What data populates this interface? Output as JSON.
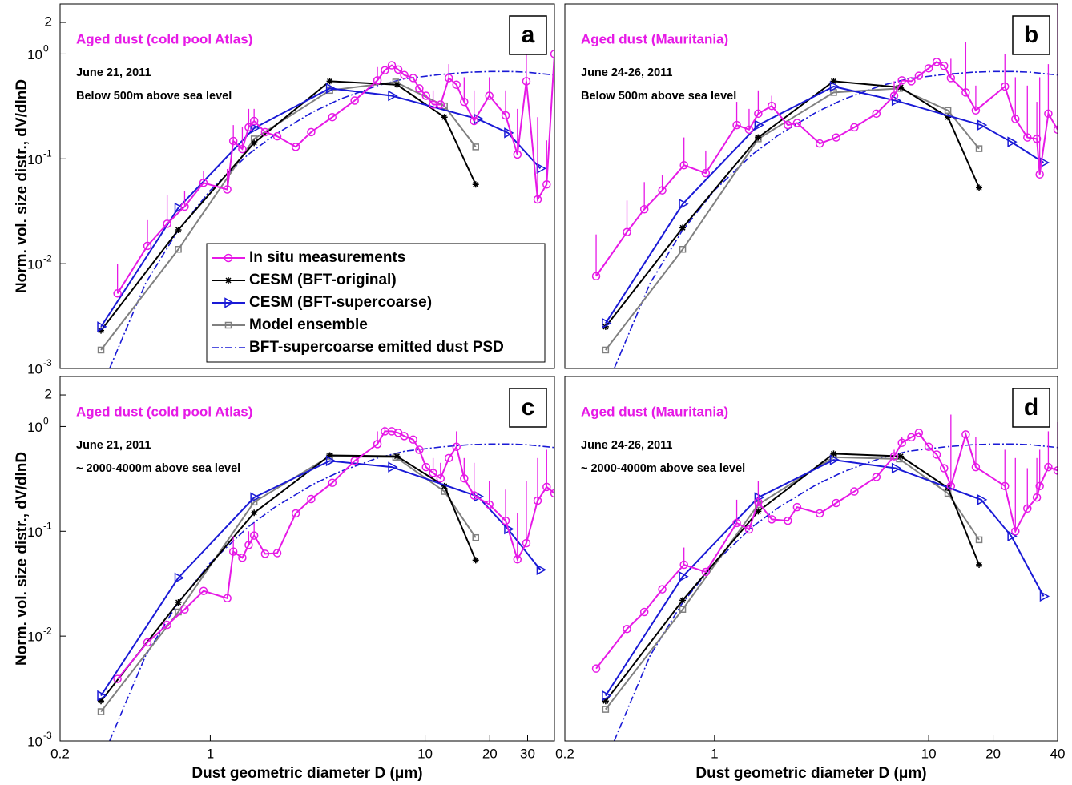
{
  "chart_data": [
    {
      "type": "line",
      "panel_label": "a",
      "xscale": "log",
      "yscale": "log",
      "xlim": [
        0.2,
        40
      ],
      "ylim": [
        0.001,
        3
      ],
      "xticks": [],
      "yticks": [
        {
          "value": 0.001,
          "label": "10",
          "exponent": "-3"
        },
        {
          "value": 0.01,
          "label": "10",
          "exponent": "-2"
        },
        {
          "value": 0.1,
          "label": "10",
          "exponent": "-1"
        },
        {
          "value": 1,
          "label": "10",
          "exponent": "0"
        },
        2
      ],
      "y_label": "Norm. vol. size distr., dV/dlnD",
      "annotations": [
        "Aged  dust (cold pool Atlas)",
        "June 21, 2011",
        "Below 500m above sea level"
      ],
      "legend": "lower right",
      "series": [
        {
          "name": "In situ measurements",
          "color": "#e619e6",
          "marker": "circle",
          "x": [
            0.37,
            0.51,
            0.63,
            0.76,
            0.93,
            1.2,
            1.28,
            1.41,
            1.51,
            1.6,
            1.8,
            2.05,
            2.5,
            2.95,
            3.7,
            4.7,
            6.0,
            6.5,
            7.0,
            7.5,
            8.0,
            8.8,
            9.4,
            10.1,
            10.9,
            11.8,
            12.9,
            14.0,
            15.2,
            16.9,
            19.9,
            23.7,
            26.9,
            29.6,
            33.4,
            36.8,
            40
          ],
          "values": [
            0.0052,
            0.0148,
            0.024,
            0.035,
            0.059,
            0.051,
            0.148,
            0.124,
            0.2,
            0.23,
            0.18,
            0.164,
            0.13,
            0.18,
            0.25,
            0.36,
            0.56,
            0.7,
            0.78,
            0.71,
            0.63,
            0.59,
            0.47,
            0.4,
            0.33,
            0.33,
            0.59,
            0.51,
            0.35,
            0.23,
            0.4,
            0.26,
            0.11,
            0.55,
            0.041,
            0.057,
            1.0
          ],
          "error_upper": [
            0.01,
            0.026,
            0.045,
            0.049,
            0.077,
            0.08,
            0.21,
            0.2,
            0.3,
            0.3,
            null,
            null,
            null,
            null,
            null,
            null,
            0.75,
            null,
            null,
            null,
            null,
            null,
            null,
            null,
            0.45,
            null,
            0.8,
            null,
            0.6,
            0.45,
            0.6,
            0.45,
            0.3,
            1.2,
            0.25,
            0.15,
            3
          ]
        },
        {
          "name": "CESM (BFT-original)",
          "color": "#000000",
          "marker": "asterisk",
          "x": [
            0.31,
            0.71,
            1.6,
            3.6,
            7.4,
            12.3,
            17.2
          ],
          "values": [
            0.0023,
            0.021,
            0.142,
            0.55,
            0.51,
            0.25,
            0.057
          ]
        },
        {
          "name": "CESM (BFT-supercoarse)",
          "color": "#1a1ad6",
          "marker": "triangle",
          "x": [
            0.31,
            0.71,
            1.6,
            3.6,
            7.0,
            17.6,
            24.3,
            34.4
          ],
          "values": [
            0.0025,
            0.034,
            0.196,
            0.47,
            0.4,
            0.24,
            0.177,
            0.081
          ]
        },
        {
          "name": "Model ensemble",
          "color": "#808080",
          "marker": "square",
          "x": [
            0.31,
            0.71,
            1.6,
            3.6,
            7.3,
            12.3,
            17.2
          ],
          "values": [
            0.0015,
            0.0137,
            0.155,
            0.45,
            0.54,
            0.32,
            0.13
          ]
        },
        {
          "name": "BFT-supercoarse emitted dust PSD",
          "color": "#1a1ad6",
          "marker": "none",
          "line": "dashdot",
          "x": [
            0.34,
            0.4,
            0.5,
            0.7,
            1,
            1.5,
            2,
            3,
            4,
            6,
            8,
            12,
            16,
            20,
            25,
            30,
            40
          ],
          "values": [
            0.001,
            0.0022,
            0.0065,
            0.02,
            0.05,
            0.11,
            0.17,
            0.28,
            0.37,
            0.5,
            0.58,
            0.64,
            0.67,
            0.68,
            0.68,
            0.67,
            0.63
          ]
        }
      ]
    },
    {
      "type": "line",
      "panel_label": "b",
      "xscale": "log",
      "yscale": "log",
      "xlim": [
        0.2,
        40
      ],
      "ylim": [
        0.001,
        3
      ],
      "xticks": [],
      "yticks": [],
      "annotations": [
        "Aged  dust (Mauritania)",
        "June 24-26, 2011",
        "Below 500m above sea level"
      ],
      "series": [
        {
          "name": "In situ measurements",
          "color": "#e619e6",
          "marker": "circle",
          "x": [
            0.28,
            0.39,
            0.47,
            0.57,
            0.72,
            0.91,
            1.27,
            1.45,
            1.6,
            1.85,
            2.2,
            2.43,
            3.1,
            3.7,
            4.5,
            5.7,
            6.9,
            7.5,
            8.3,
            9.0,
            10.0,
            10.9,
            11.8,
            12.7,
            14.9,
            16.6,
            22.7,
            25.4,
            28.9,
            32.0,
            33.0,
            36.2,
            40
          ],
          "values": [
            0.0076,
            0.02,
            0.033,
            0.05,
            0.087,
            0.073,
            0.21,
            0.19,
            0.27,
            0.32,
            0.21,
            0.22,
            0.14,
            0.16,
            0.2,
            0.27,
            0.4,
            0.56,
            0.55,
            0.62,
            0.73,
            0.84,
            0.77,
            0.59,
            0.43,
            0.29,
            0.49,
            0.24,
            0.16,
            0.155,
            0.071,
            0.27,
            0.19
          ],
          "error_upper": [
            0.019,
            0.04,
            0.06,
            0.07,
            0.16,
            0.12,
            0.35,
            0.3,
            0.45,
            0.4,
            null,
            null,
            null,
            null,
            null,
            null,
            0.55,
            null,
            null,
            null,
            null,
            null,
            null,
            0.9,
            1.3,
            0.5,
            1.0,
            0.6,
            0.5,
            0.35,
            0.6,
            0.8,
            3
          ]
        },
        {
          "name": "CESM (BFT-original)",
          "color": "#000000",
          "marker": "asterisk",
          "x": [
            0.31,
            0.71,
            1.6,
            3.6,
            7.4,
            12.3,
            17.2
          ],
          "values": [
            0.0025,
            0.022,
            0.16,
            0.55,
            0.48,
            0.25,
            0.053
          ]
        },
        {
          "name": "CESM (BFT-supercoarse)",
          "color": "#1a1ad6",
          "marker": "triangle",
          "x": [
            0.31,
            0.71,
            1.6,
            3.6,
            7.0,
            17.6,
            24.3,
            34.4
          ],
          "values": [
            0.0027,
            0.037,
            0.21,
            0.49,
            0.36,
            0.21,
            0.145,
            0.092
          ]
        },
        {
          "name": "Model ensemble",
          "color": "#808080",
          "marker": "square",
          "x": [
            0.31,
            0.71,
            1.6,
            3.6,
            7.3,
            12.3,
            17.2
          ],
          "values": [
            0.0015,
            0.0137,
            0.155,
            0.43,
            0.47,
            0.29,
            0.125
          ]
        },
        {
          "name": "BFT-supercoarse emitted dust PSD",
          "color": "#1a1ad6",
          "marker": "none",
          "line": "dashdot",
          "x": [
            0.34,
            0.4,
            0.5,
            0.7,
            1,
            1.5,
            2,
            3,
            4,
            6,
            8,
            12,
            16,
            20,
            25,
            30,
            40
          ],
          "values": [
            0.001,
            0.0022,
            0.0065,
            0.02,
            0.05,
            0.11,
            0.17,
            0.28,
            0.37,
            0.5,
            0.58,
            0.64,
            0.67,
            0.68,
            0.68,
            0.67,
            0.63
          ]
        }
      ]
    },
    {
      "type": "line",
      "panel_label": "c",
      "xscale": "log",
      "yscale": "log",
      "xlim": [
        0.2,
        40
      ],
      "ylim": [
        0.001,
        3
      ],
      "xticks": [
        0.2,
        1,
        10,
        20,
        30
      ],
      "yticks": [
        {
          "value": 0.001,
          "label": "10",
          "exponent": "-3"
        },
        {
          "value": 0.01,
          "label": "10",
          "exponent": "-2"
        },
        {
          "value": 0.1,
          "label": "10",
          "exponent": "-1"
        },
        {
          "value": 1,
          "label": "10",
          "exponent": "0"
        },
        2
      ],
      "y_label": "Norm. vol. size distr., dV/dlnD",
      "x_label": "Dust geometric diameter D (μm)",
      "annotations": [
        "Aged  dust (cold pool Atlas)",
        "June 21, 2011",
        "~ 2000-4000m above sea level"
      ],
      "series": [
        {
          "name": "In situ measurements",
          "color": "#e619e6",
          "marker": "circle",
          "x": [
            0.37,
            0.51,
            0.63,
            0.76,
            0.93,
            1.2,
            1.28,
            1.41,
            1.51,
            1.6,
            1.8,
            2.05,
            2.5,
            2.95,
            3.7,
            4.7,
            6.0,
            6.5,
            7.0,
            7.5,
            8.0,
            8.8,
            9.4,
            10.1,
            10.9,
            11.8,
            12.9,
            14.0,
            15.2,
            16.9,
            19.9,
            23.7,
            26.9,
            29.6,
            33.4,
            36.8,
            40
          ],
          "values": [
            0.0039,
            0.0087,
            0.0128,
            0.018,
            0.027,
            0.023,
            0.064,
            0.056,
            0.074,
            0.091,
            0.061,
            0.062,
            0.148,
            0.203,
            0.29,
            0.47,
            0.68,
            0.9,
            0.9,
            0.87,
            0.81,
            0.75,
            0.6,
            0.41,
            0.36,
            0.32,
            0.5,
            0.64,
            0.32,
            0.22,
            0.18,
            0.126,
            0.054,
            0.077,
            0.196,
            0.265,
            0.23
          ],
          "error_upper": [
            null,
            null,
            null,
            null,
            null,
            null,
            0.09,
            null,
            0.1,
            0.12,
            null,
            null,
            null,
            null,
            null,
            null,
            0.9,
            1.0,
            null,
            null,
            null,
            null,
            null,
            null,
            0.5,
            0.45,
            null,
            0.9,
            0.5,
            0.45,
            0.3,
            0.25,
            0.15,
            0.3,
            0.5,
            0.6,
            0.6
          ]
        },
        {
          "name": "CESM (BFT-original)",
          "color": "#000000",
          "marker": "asterisk",
          "x": [
            0.31,
            0.71,
            1.6,
            3.6,
            7.4,
            12.3,
            17.2
          ],
          "values": [
            0.0024,
            0.021,
            0.15,
            0.53,
            0.52,
            0.27,
            0.053
          ]
        },
        {
          "name": "CESM (BFT-supercoarse)",
          "color": "#1a1ad6",
          "marker": "triangle",
          "x": [
            0.31,
            0.71,
            1.6,
            3.6,
            7.0,
            17.6,
            24.3,
            34.4
          ],
          "values": [
            0.0027,
            0.036,
            0.21,
            0.47,
            0.41,
            0.215,
            0.105,
            0.043
          ]
        },
        {
          "name": "Model ensemble",
          "color": "#808080",
          "marker": "square",
          "x": [
            0.31,
            0.71,
            1.6,
            3.6,
            7.3,
            12.3,
            17.2
          ],
          "values": [
            0.0019,
            0.017,
            0.19,
            0.52,
            0.51,
            0.24,
            0.087
          ]
        },
        {
          "name": "BFT-supercoarse emitted dust PSD",
          "color": "#1a1ad6",
          "marker": "none",
          "line": "dashdot",
          "x": [
            0.34,
            0.4,
            0.5,
            0.7,
            1,
            1.5,
            2,
            3,
            4,
            6,
            8,
            12,
            16,
            20,
            25,
            30,
            40
          ],
          "values": [
            0.001,
            0.0022,
            0.0065,
            0.02,
            0.05,
            0.11,
            0.17,
            0.28,
            0.37,
            0.5,
            0.58,
            0.64,
            0.67,
            0.68,
            0.68,
            0.67,
            0.63
          ]
        }
      ]
    },
    {
      "type": "line",
      "panel_label": "d",
      "xscale": "log",
      "yscale": "log",
      "xlim": [
        0.2,
        40
      ],
      "ylim": [
        0.001,
        3
      ],
      "xticks": [
        0.2,
        1,
        10,
        20,
        40
      ],
      "yticks": [],
      "x_label": "Dust geometric diameter D (μm)",
      "annotations": [
        "Aged  dust (Mauritania)",
        "June 24-26, 2011",
        "~ 2000-4000m above sea level"
      ],
      "series": [
        {
          "name": "In situ measurements",
          "color": "#e619e6",
          "marker": "circle",
          "x": [
            0.28,
            0.39,
            0.47,
            0.57,
            0.72,
            0.91,
            1.27,
            1.45,
            1.6,
            1.85,
            2.2,
            2.43,
            3.1,
            3.7,
            4.5,
            5.7,
            6.9,
            7.5,
            8.3,
            9.0,
            10.0,
            10.9,
            11.8,
            12.7,
            14.9,
            16.6,
            22.7,
            25.4,
            28.9,
            32.0,
            33.0,
            36.2,
            40
          ],
          "values": [
            0.0049,
            0.0117,
            0.017,
            0.028,
            0.048,
            0.041,
            0.12,
            0.104,
            0.19,
            0.13,
            0.126,
            0.17,
            0.148,
            0.186,
            0.24,
            0.33,
            0.52,
            0.7,
            0.79,
            0.87,
            0.64,
            0.54,
            0.4,
            0.27,
            0.84,
            0.41,
            0.27,
            0.1,
            0.165,
            0.21,
            0.27,
            0.41,
            0.38
          ],
          "error_upper": [
            null,
            null,
            null,
            null,
            0.07,
            null,
            0.2,
            null,
            0.3,
            null,
            null,
            null,
            null,
            null,
            null,
            null,
            0.6,
            0.8,
            null,
            null,
            null,
            null,
            null,
            1.3,
            null,
            0.8,
            0.6,
            0.5,
            0.4,
            0.5,
            0.6,
            0.9,
            1.1
          ]
        },
        {
          "name": "CESM (BFT-original)",
          "color": "#000000",
          "marker": "asterisk",
          "x": [
            0.31,
            0.71,
            1.6,
            3.6,
            7.4,
            12.3,
            17.2
          ],
          "values": [
            0.0024,
            0.022,
            0.155,
            0.55,
            0.52,
            0.26,
            0.048
          ]
        },
        {
          "name": "CESM (BFT-supercoarse)",
          "color": "#1a1ad6",
          "marker": "triangle",
          "x": [
            0.31,
            0.71,
            1.6,
            3.6,
            7.0,
            17.6,
            24.3,
            34.4
          ],
          "values": [
            0.0027,
            0.037,
            0.21,
            0.48,
            0.4,
            0.2,
            0.09,
            0.024
          ]
        },
        {
          "name": "Model ensemble",
          "color": "#808080",
          "marker": "square",
          "x": [
            0.31,
            0.71,
            1.6,
            3.6,
            7.3,
            12.3,
            17.2
          ],
          "values": [
            0.002,
            0.018,
            0.18,
            0.51,
            0.49,
            0.23,
            0.083
          ]
        },
        {
          "name": "BFT-supercoarse emitted dust PSD",
          "color": "#1a1ad6",
          "marker": "none",
          "line": "dashdot",
          "x": [
            0.34,
            0.4,
            0.5,
            0.7,
            1,
            1.5,
            2,
            3,
            4,
            6,
            8,
            12,
            16,
            20,
            25,
            30,
            40
          ],
          "values": [
            0.001,
            0.0022,
            0.0065,
            0.02,
            0.05,
            0.11,
            0.17,
            0.28,
            0.37,
            0.5,
            0.58,
            0.64,
            0.67,
            0.68,
            0.68,
            0.67,
            0.63
          ]
        }
      ]
    }
  ]
}
